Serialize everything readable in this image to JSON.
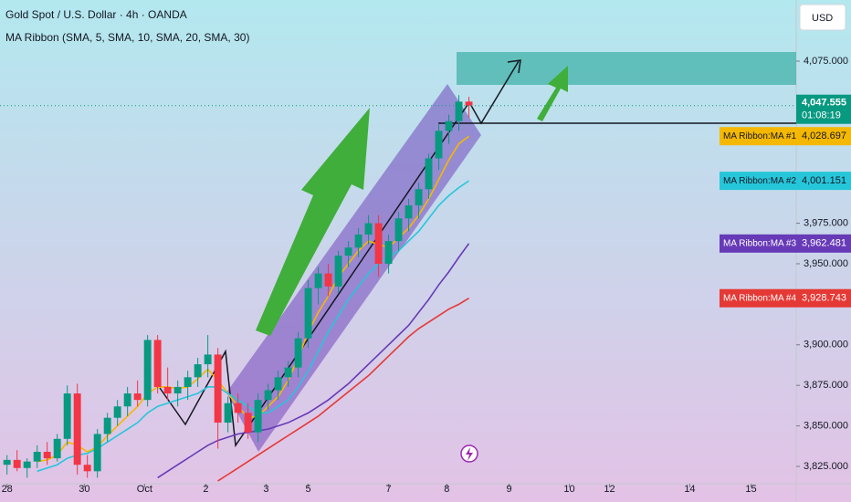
{
  "chart_data": {
    "type": "candlestick",
    "title": "Gold Spot / U.S. Dollar · 4h · OANDA",
    "subtitle": "MA Ribbon (SMA, 5, SMA, 10, SMA, 20, SMA, 30)",
    "currency": "USD",
    "up_color": "#089981",
    "down_color": "#f23645",
    "ylim": [
      3814.3,
      4112.7
    ],
    "yticks": [
      {
        "value": 3825,
        "label": "3,825.000"
      },
      {
        "value": 3850,
        "label": "3,850.000"
      },
      {
        "value": 3875,
        "label": "3,875.000"
      },
      {
        "value": 3900,
        "label": "3,900.000"
      },
      {
        "value": 3950,
        "label": "3,950.000"
      },
      {
        "value": 3975,
        "label": "3,975.000"
      },
      {
        "value": 4075,
        "label": "4,075.000"
      }
    ],
    "xlim": [
      -0.7,
      78.6
    ],
    "xticks": [
      {
        "value": 0,
        "label": "28"
      },
      {
        "value": 7.7,
        "label": "30"
      },
      {
        "value": 13.7,
        "label": "Oct"
      },
      {
        "value": 19.8,
        "label": "2"
      },
      {
        "value": 25.8,
        "label": "3"
      },
      {
        "value": 30,
        "label": "5"
      },
      {
        "value": 38,
        "label": "7"
      },
      {
        "value": 43.8,
        "label": "8"
      },
      {
        "value": 50,
        "label": "9"
      },
      {
        "value": 56,
        "label": "10"
      },
      {
        "value": 60,
        "label": "12"
      },
      {
        "value": 68,
        "label": "14"
      },
      {
        "value": 74.1,
        "label": "15"
      }
    ],
    "open": [
      3826,
      3829,
      3824,
      3828,
      3834,
      3830,
      3842,
      3870,
      3826,
      3822,
      3845,
      3855,
      3862,
      3870,
      3866,
      3903,
      3874,
      3870,
      3874,
      3880,
      3888,
      3894,
      3852,
      3864,
      3858,
      3846,
      3866,
      3872,
      3880,
      3886,
      3904,
      3935,
      3944,
      3936,
      3955,
      3960,
      3968,
      3975,
      3950,
      3964,
      3978,
      3986,
      3996,
      4015,
      4032,
      4038,
      4050
    ],
    "high": [
      3832,
      3835,
      3830,
      3838,
      3840,
      3845,
      3875,
      3876,
      3832,
      3848,
      3858,
      3866,
      3874,
      3878,
      3906,
      3906,
      3886,
      3878,
      3884,
      3892,
      3906,
      3898,
      3868,
      3870,
      3864,
      3870,
      3876,
      3884,
      3890,
      3908,
      3940,
      3948,
      3950,
      3958,
      3964,
      3972,
      3980,
      3980,
      3968,
      3982,
      3990,
      4000,
      4018,
      4036,
      4042,
      4054,
      4053
    ],
    "low": [
      3820,
      3822,
      3818,
      3824,
      3826,
      3828,
      3838,
      3820,
      3818,
      3818,
      3840,
      3850,
      3856,
      3862,
      3862,
      3870,
      3866,
      3862,
      3866,
      3874,
      3880,
      3836,
      3846,
      3852,
      3842,
      3840,
      3860,
      3866,
      3874,
      3880,
      3898,
      3925,
      3930,
      3932,
      3948,
      3954,
      3962,
      3942,
      3944,
      3958,
      3970,
      3978,
      3990,
      4008,
      4024,
      4032,
      4040
    ],
    "close": [
      3829,
      3824,
      3828,
      3834,
      3830,
      3842,
      3870,
      3826,
      3822,
      3845,
      3855,
      3862,
      3870,
      3866,
      3903,
      3874,
      3870,
      3874,
      3880,
      3888,
      3894,
      3852,
      3864,
      3858,
      3846,
      3866,
      3872,
      3880,
      3886,
      3904,
      3935,
      3944,
      3936,
      3955,
      3960,
      3968,
      3975,
      3950,
      3964,
      3978,
      3986,
      3996,
      4015,
      4032,
      4038,
      4050,
      4047.555
    ],
    "last_label": "4,047.555",
    "countdown": "01:08:19",
    "series": [
      {
        "name": "MA Ribbon:MA #1",
        "color": "#f5b800",
        "text_color": "#131722",
        "last_label": "4,028.697",
        "values": [
          null,
          null,
          null,
          3828,
          3829,
          3832,
          3840,
          3838,
          3834,
          3837,
          3844,
          3850,
          3856,
          3862,
          3870,
          3874,
          3874,
          3873,
          3874,
          3879,
          3885,
          3878,
          3870,
          3862,
          3855,
          3856,
          3862,
          3868,
          3878,
          3892,
          3908,
          3920,
          3930,
          3942,
          3950,
          3958,
          3964,
          3962,
          3960,
          3966,
          3972,
          3980,
          3990,
          4002,
          4014,
          4024,
          4028.697
        ]
      },
      {
        "name": "MA Ribbon:MA #2",
        "color": "#26c6da",
        "text_color": "#131722",
        "last_label": "4,001.151",
        "values": [
          null,
          null,
          null,
          3822,
          3824,
          3826,
          3830,
          3832,
          3833,
          3836,
          3840,
          3844,
          3848,
          3852,
          3858,
          3862,
          3864,
          3866,
          3868,
          3870,
          3874,
          3874,
          3870,
          3866,
          3862,
          3858,
          3858,
          3862,
          3866,
          3874,
          3884,
          3896,
          3908,
          3918,
          3928,
          3936,
          3944,
          3950,
          3954,
          3958,
          3964,
          3970,
          3978,
          3986,
          3992,
          3997,
          4001.151
        ]
      },
      {
        "name": "MA Ribbon:MA #3",
        "color": "#673ab7",
        "text_color": "#ffffff",
        "last_label": "3,962.481",
        "values": [
          null,
          null,
          null,
          null,
          null,
          null,
          null,
          null,
          null,
          null,
          null,
          null,
          null,
          null,
          null,
          3818,
          3822,
          3826,
          3830,
          3834,
          3838,
          3841,
          3843,
          3845,
          3846,
          3847,
          3848,
          3850,
          3852,
          3855,
          3858,
          3862,
          3866,
          3871,
          3876,
          3882,
          3888,
          3894,
          3900,
          3906,
          3912,
          3920,
          3928,
          3937,
          3945,
          3954,
          3962.481
        ]
      },
      {
        "name": "MA Ribbon:MA #4",
        "color": "#e53935",
        "text_color": "#ffffff",
        "last_label": "3,928.743",
        "values": [
          null,
          null,
          null,
          null,
          null,
          null,
          null,
          null,
          null,
          null,
          null,
          null,
          null,
          null,
          null,
          null,
          null,
          null,
          null,
          null,
          null,
          3816,
          3820,
          3824,
          3828,
          3832,
          3836,
          3840,
          3844,
          3848,
          3852,
          3856,
          3861,
          3866,
          3871,
          3876,
          3881,
          3887,
          3893,
          3899,
          3905,
          3910,
          3914,
          3918,
          3922,
          3925,
          3928.743
        ]
      }
    ]
  }
}
